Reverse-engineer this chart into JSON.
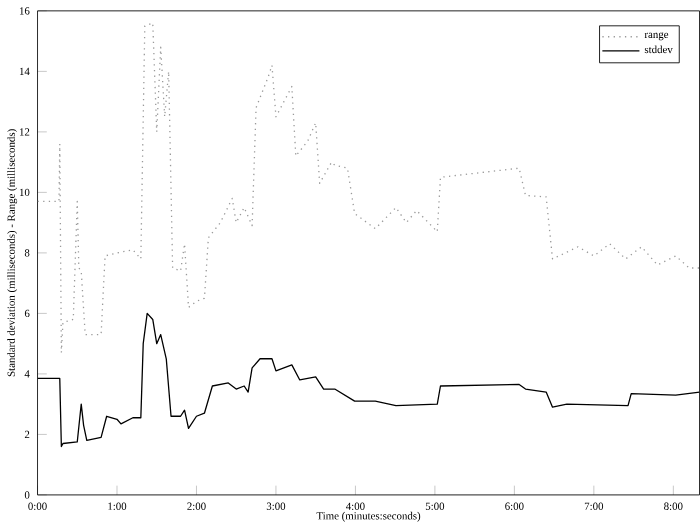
{
  "chart_data": {
    "type": "line",
    "xlabel": "Time (minutes:seconds)",
    "ylabel": "Standard deviation (milliseconds) - Range (milliseconds)",
    "xlim": [
      0,
      8.33
    ],
    "ylim": [
      0,
      16
    ],
    "xticks": [
      {
        "value": 0,
        "label": "0:00"
      },
      {
        "value": 1,
        "label": "1:00"
      },
      {
        "value": 2,
        "label": "2:00"
      },
      {
        "value": 3,
        "label": "3:00"
      },
      {
        "value": 4,
        "label": "4:00"
      },
      {
        "value": 5,
        "label": "5:00"
      },
      {
        "value": 6,
        "label": "6:00"
      },
      {
        "value": 7,
        "label": "7:00"
      },
      {
        "value": 8,
        "label": "8:00"
      }
    ],
    "yticks": [
      0,
      2,
      4,
      6,
      8,
      10,
      12,
      14,
      16
    ],
    "grid": false,
    "legend": "top right",
    "marker": "none",
    "series": [
      {
        "name": "range",
        "color": "#999999",
        "line_style": "dotted",
        "x": [
          0,
          0.27,
          0.28,
          0.3,
          0.32,
          0.45,
          0.5,
          0.52,
          0.55,
          0.6,
          0.62,
          0.8,
          0.85,
          1.0,
          1.2,
          1.3,
          1.35,
          1.45,
          1.5,
          1.55,
          1.6,
          1.65,
          1.7,
          1.8,
          1.85,
          1.9,
          2.0,
          2.1,
          2.15,
          2.3,
          2.45,
          2.5,
          2.6,
          2.7,
          2.75,
          2.9,
          2.95,
          3.0,
          3.1,
          3.2,
          3.25,
          3.4,
          3.5,
          3.55,
          3.7,
          3.74,
          3.9,
          3.99,
          4.25,
          4.51,
          4.64,
          4.77,
          5.03,
          5.07,
          6.06,
          6.14,
          6.4,
          6.48,
          6.8,
          7.0,
          7.2,
          7.4,
          7.6,
          7.8,
          8.03,
          8.2,
          8.33
        ],
        "values": [
          9.7,
          9.7,
          11.6,
          4.7,
          5.7,
          5.8,
          9.7,
          7.5,
          7.4,
          5.3,
          5.3,
          5.3,
          7.9,
          8.0,
          8.1,
          7.8,
          15.5,
          15.6,
          12.0,
          14.8,
          12.5,
          14.0,
          7.5,
          7.4,
          8.3,
          6.2,
          6.4,
          6.5,
          8.5,
          9.0,
          9.8,
          9.0,
          9.5,
          8.9,
          12.8,
          13.8,
          14.2,
          12.5,
          13.0,
          13.5,
          11.2,
          11.7,
          12.3,
          10.3,
          11.0,
          10.9,
          10.8,
          9.3,
          8.8,
          9.5,
          9.0,
          9.4,
          8.7,
          10.5,
          10.8,
          9.9,
          9.85,
          7.8,
          8.2,
          7.9,
          8.3,
          7.8,
          8.2,
          7.6,
          7.9,
          7.5,
          7.5
        ]
      },
      {
        "name": "stddev",
        "color": "#000000",
        "line_style": "solid",
        "x": [
          0,
          0.28,
          0.3,
          0.32,
          0.5,
          0.55,
          0.58,
          0.62,
          0.8,
          0.87,
          1.0,
          1.05,
          1.2,
          1.3,
          1.33,
          1.38,
          1.45,
          1.5,
          1.55,
          1.62,
          1.68,
          1.8,
          1.85,
          1.9,
          2.0,
          2.1,
          2.2,
          2.4,
          2.5,
          2.6,
          2.65,
          2.7,
          2.8,
          2.95,
          3.0,
          3.2,
          3.3,
          3.5,
          3.6,
          3.74,
          3.99,
          4.25,
          4.51,
          5.03,
          5.07,
          6.06,
          6.14,
          6.4,
          6.48,
          6.66,
          7.43,
          7.47,
          8.03,
          8.33
        ],
        "values": [
          3.85,
          3.85,
          1.6,
          1.7,
          1.75,
          3.0,
          2.3,
          1.8,
          1.9,
          2.6,
          2.5,
          2.35,
          2.55,
          2.55,
          5.0,
          6.0,
          5.8,
          5.0,
          5.3,
          4.5,
          2.6,
          2.6,
          2.8,
          2.2,
          2.6,
          2.7,
          3.6,
          3.7,
          3.5,
          3.6,
          3.4,
          4.2,
          4.5,
          4.5,
          4.1,
          4.3,
          3.8,
          3.9,
          3.5,
          3.5,
          3.1,
          3.1,
          2.95,
          3.0,
          3.6,
          3.65,
          3.5,
          3.4,
          2.9,
          3.0,
          2.95,
          3.35,
          3.3,
          3.4
        ]
      }
    ]
  }
}
